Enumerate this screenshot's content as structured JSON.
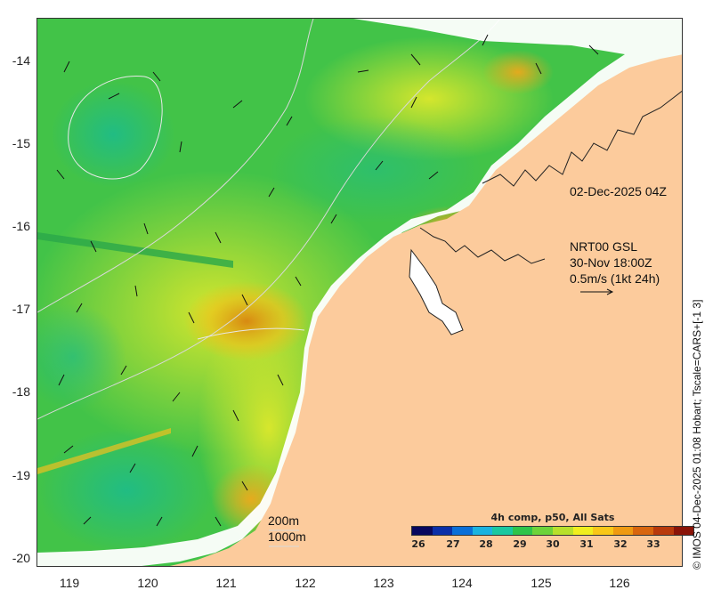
{
  "map": {
    "y_ticks": [
      "-14",
      "-15",
      "-16",
      "-17",
      "-18",
      "-19",
      "-20"
    ],
    "x_ticks": [
      "119",
      "120",
      "121",
      "122",
      "123",
      "124",
      "125",
      "126"
    ],
    "lat_range": [
      -20.1,
      -13.5
    ],
    "lon_range": [
      118.6,
      126.7
    ],
    "land_color": "#fccb9c",
    "nodata_color": "#ffffff"
  },
  "annotations": {
    "date": "02-Dec-2025 04Z",
    "model": "NRT00 GSL",
    "model_time": "30-Nov 18:00Z",
    "vector_scale": "0.5m/s (1kt 24h)",
    "isobath_1": "200m",
    "isobath_2": "1000m"
  },
  "colorbar": {
    "title": "4h comp, p50, All Sats",
    "ticks": [
      "26",
      "27",
      "28",
      "29",
      "30",
      "31",
      "32",
      "33"
    ],
    "colors": [
      "#08085e",
      "#0a2fa8",
      "#0a6fd8",
      "#1ab3e0",
      "#19c8a0",
      "#2ec44a",
      "#6cd33a",
      "#b7e02c",
      "#f0ee1e",
      "#f8c718",
      "#ee9a12",
      "#d8660e",
      "#b83a0c",
      "#8a1408"
    ]
  },
  "credit": "© IMOS 04-Dec-2025 01:08 Hobart; Tscale=CARS+[-1 3]"
}
